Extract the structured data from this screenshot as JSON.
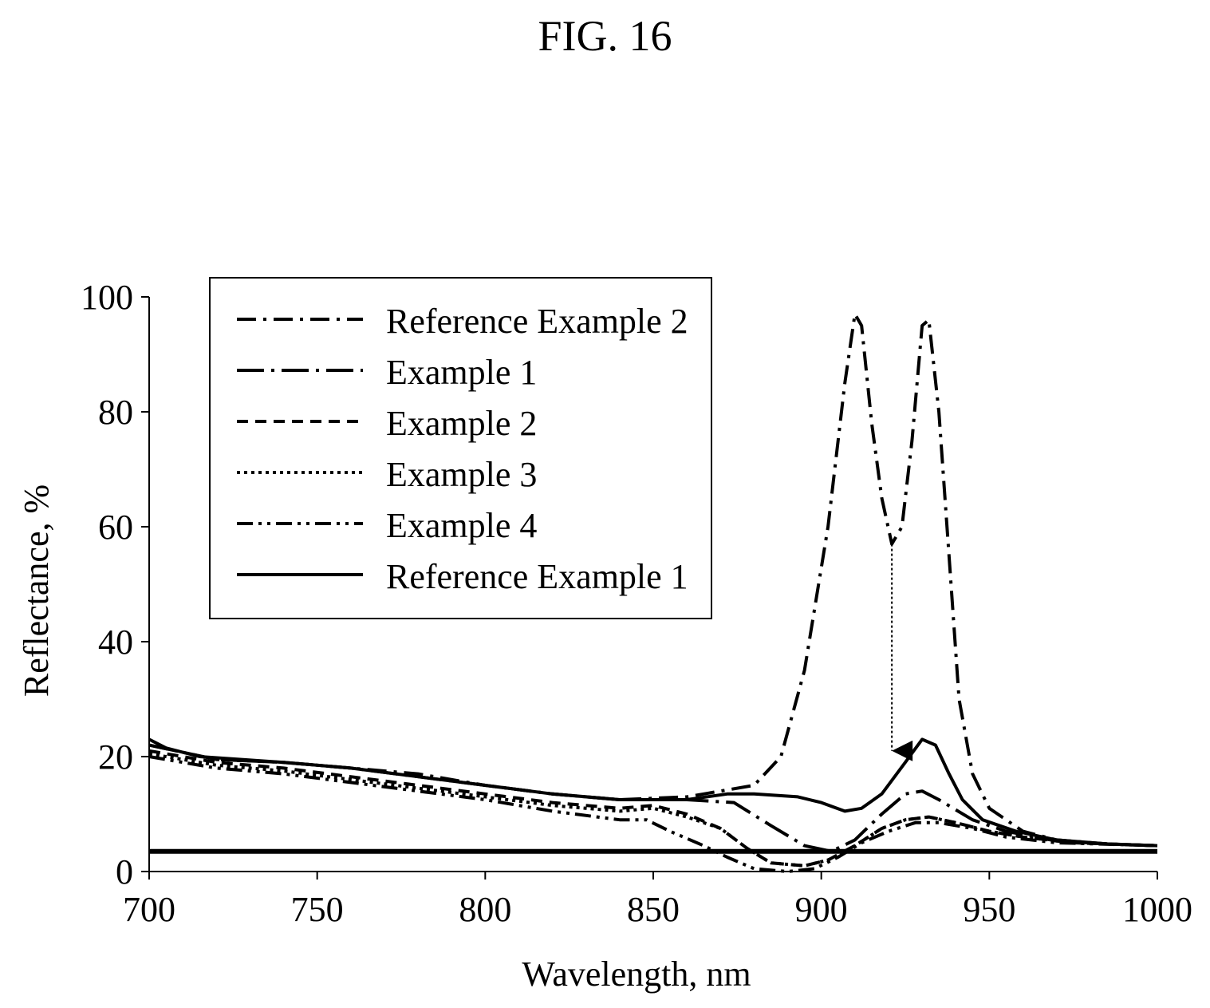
{
  "figure_label": "FIG. 16",
  "chart_data": {
    "type": "line",
    "title": "",
    "xlabel": "Wavelength, nm",
    "ylabel": "Reflectance, %",
    "xlim": [
      700,
      1000
    ],
    "ylim": [
      0,
      100
    ],
    "xticks": [
      700,
      750,
      800,
      850,
      900,
      950,
      1000
    ],
    "yticks": [
      0,
      20,
      40,
      60,
      80,
      100
    ],
    "grid": false,
    "legend_position": "top-left",
    "series": [
      {
        "name": "Reference Example 2",
        "dash": "dashdot",
        "points": [
          [
            700,
            22
          ],
          [
            720,
            19.5
          ],
          [
            740,
            19
          ],
          [
            760,
            18
          ],
          [
            780,
            17
          ],
          [
            800,
            15
          ],
          [
            820,
            13.5
          ],
          [
            840,
            12.5
          ],
          [
            860,
            13
          ],
          [
            870,
            14
          ],
          [
            880,
            15
          ],
          [
            888,
            20
          ],
          [
            895,
            35
          ],
          [
            902,
            60
          ],
          [
            907,
            85
          ],
          [
            910,
            97
          ],
          [
            912,
            95
          ],
          [
            915,
            78
          ],
          [
            918,
            65
          ],
          [
            921,
            57
          ],
          [
            924,
            60
          ],
          [
            927,
            75
          ],
          [
            930,
            95
          ],
          [
            932,
            96
          ],
          [
            935,
            80
          ],
          [
            938,
            55
          ],
          [
            941,
            30
          ],
          [
            945,
            17
          ],
          [
            950,
            11
          ],
          [
            960,
            7
          ],
          [
            970,
            5.5
          ],
          [
            985,
            4.8
          ],
          [
            1000,
            4.5
          ]
        ]
      },
      {
        "name": "Example 1",
        "dash": "longdashdot",
        "points": [
          [
            700,
            22
          ],
          [
            720,
            19.5
          ],
          [
            740,
            19
          ],
          [
            760,
            18
          ],
          [
            780,
            16.5
          ],
          [
            800,
            15
          ],
          [
            820,
            13.5
          ],
          [
            840,
            12.5
          ],
          [
            860,
            12.5
          ],
          [
            874,
            12
          ],
          [
            885,
            8
          ],
          [
            895,
            4.5
          ],
          [
            903,
            3.5
          ],
          [
            910,
            5.5
          ],
          [
            918,
            10
          ],
          [
            925,
            13.5
          ],
          [
            930,
            14
          ],
          [
            935,
            12.5
          ],
          [
            945,
            9
          ],
          [
            955,
            7
          ],
          [
            970,
            5.3
          ],
          [
            985,
            4.8
          ],
          [
            1000,
            4.5
          ]
        ]
      },
      {
        "name": "Example 2",
        "dash": "dashed",
        "points": [
          [
            700,
            21
          ],
          [
            720,
            19
          ],
          [
            740,
            18
          ],
          [
            760,
            16.5
          ],
          [
            780,
            15
          ],
          [
            800,
            13.5
          ],
          [
            820,
            12
          ],
          [
            840,
            11
          ],
          [
            850,
            11.5
          ],
          [
            860,
            10
          ],
          [
            870,
            7.5
          ],
          [
            878,
            4
          ],
          [
            885,
            1.5
          ],
          [
            895,
            1
          ],
          [
            902,
            2
          ],
          [
            910,
            4.5
          ],
          [
            918,
            7.5
          ],
          [
            925,
            9
          ],
          [
            932,
            9.5
          ],
          [
            940,
            8.5
          ],
          [
            950,
            7
          ],
          [
            960,
            6
          ],
          [
            975,
            5
          ],
          [
            1000,
            4.5
          ]
        ]
      },
      {
        "name": "Example 3",
        "dash": "dotted",
        "points": [
          [
            700,
            20.5
          ],
          [
            720,
            18.5
          ],
          [
            740,
            17.5
          ],
          [
            760,
            16
          ],
          [
            780,
            14.5
          ],
          [
            800,
            13
          ],
          [
            820,
            11.5
          ],
          [
            840,
            10.5
          ],
          [
            850,
            11
          ],
          [
            860,
            9.5
          ],
          [
            870,
            7.5
          ],
          [
            878,
            4
          ],
          [
            885,
            1.5
          ],
          [
            895,
            1
          ],
          [
            902,
            2
          ],
          [
            910,
            4.5
          ],
          [
            918,
            7.5
          ],
          [
            925,
            9
          ],
          [
            932,
            9.5
          ],
          [
            940,
            8.5
          ],
          [
            950,
            7
          ],
          [
            960,
            6
          ],
          [
            975,
            5
          ],
          [
            1000,
            4.5
          ]
        ]
      },
      {
        "name": "Example 4",
        "dash": "dashdotdot",
        "points": [
          [
            700,
            20
          ],
          [
            720,
            18
          ],
          [
            740,
            17
          ],
          [
            760,
            15.5
          ],
          [
            780,
            14
          ],
          [
            800,
            12.5
          ],
          [
            820,
            10.5
          ],
          [
            840,
            9
          ],
          [
            848,
            9
          ],
          [
            855,
            7
          ],
          [
            865,
            4.5
          ],
          [
            872,
            2.5
          ],
          [
            880,
            0.5
          ],
          [
            890,
            0
          ],
          [
            898,
            0.5
          ],
          [
            905,
            2.5
          ],
          [
            912,
            5
          ],
          [
            920,
            7
          ],
          [
            928,
            8.5
          ],
          [
            935,
            8.5
          ],
          [
            945,
            7.5
          ],
          [
            955,
            6
          ],
          [
            970,
            5
          ],
          [
            1000,
            4.5
          ]
        ]
      },
      {
        "name": "Reference Example 1",
        "dash": "solid",
        "points": [
          [
            700,
            23
          ],
          [
            705,
            21.5
          ],
          [
            715,
            20
          ],
          [
            740,
            19
          ],
          [
            760,
            18
          ],
          [
            780,
            16.5
          ],
          [
            800,
            15
          ],
          [
            820,
            13.5
          ],
          [
            840,
            12.5
          ],
          [
            860,
            12.5
          ],
          [
            872,
            13.5
          ],
          [
            880,
            13.5
          ],
          [
            893,
            13
          ],
          [
            900,
            12
          ],
          [
            907,
            10.5
          ],
          [
            912,
            11
          ],
          [
            918,
            13.5
          ],
          [
            925,
            19
          ],
          [
            930,
            23
          ],
          [
            934,
            22
          ],
          [
            938,
            17
          ],
          [
            942,
            12.5
          ],
          [
            948,
            9
          ],
          [
            958,
            7
          ],
          [
            970,
            5.5
          ],
          [
            985,
            4.8
          ],
          [
            1000,
            4.5
          ]
        ]
      }
    ],
    "reference_line": {
      "y": 3.5
    },
    "annotation": {
      "type": "arrow",
      "x": 921,
      "from_y": 57,
      "to_y": 21
    }
  }
}
